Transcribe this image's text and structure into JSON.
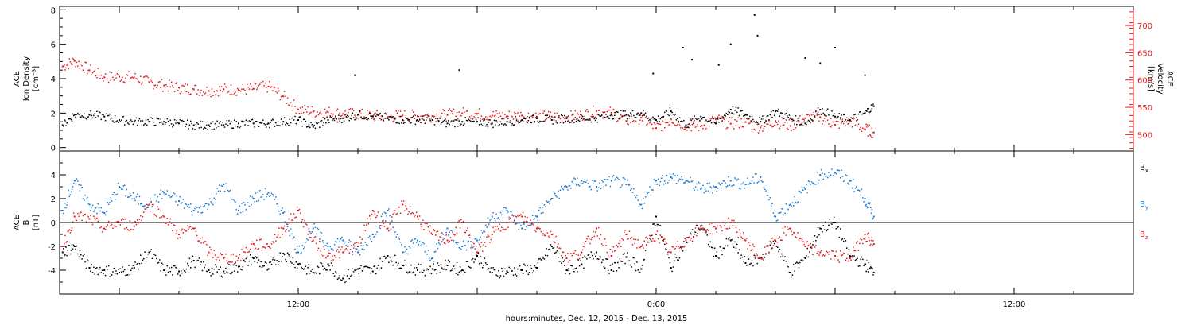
{
  "chart_data": [
    {
      "type": "scatter",
      "panel": "top",
      "xlabel": "hours:minutes, Dec. 12, 2015 - Dec. 13, 2015",
      "x_tick_labels": [
        "12:00",
        "0:00",
        "12:00"
      ],
      "x_unit": "hours since Dec. 12, 2015 00:00",
      "xlim": [
        4.0,
        40.0
      ],
      "left_axis": {
        "label_line1": "ACE",
        "label_line2": "Ion Density",
        "label_line3": "[cm⁻³]",
        "ylim": [
          -0.2,
          8.2
        ],
        "ticks": [
          0,
          2,
          4,
          6,
          8
        ],
        "color": "#000000"
      },
      "right_axis": {
        "label_line1": "ACE",
        "label_line2": "Velocity",
        "label_line3": "[km/s]",
        "ylim": [
          470,
          735
        ],
        "ticks": [
          500,
          550,
          600,
          650,
          700
        ],
        "color": "#e41a1c"
      },
      "series": [
        {
          "key": "density",
          "axis": "left",
          "color": "#000000",
          "x": [
            4.1,
            4.5,
            5.0,
            5.5,
            6.0,
            6.5,
            7.0,
            7.5,
            8.0,
            8.5,
            9.0,
            9.5,
            10.0,
            10.5,
            11.0,
            11.5,
            12.0,
            12.5,
            13.0,
            13.5,
            14.0,
            14.5,
            15.0,
            15.5,
            16.0,
            16.5,
            17.0,
            17.5,
            18.0,
            18.5,
            19.0,
            19.5,
            20.0,
            20.5,
            21.0,
            21.5,
            22.0,
            22.5,
            23.0,
            23.5,
            24.0,
            24.5,
            25.0,
            25.5,
            26.0,
            26.5,
            27.0,
            27.5,
            28.0,
            28.5,
            29.0,
            29.5,
            30.0,
            30.5,
            31.0,
            31.3
          ],
          "y": [
            1.3,
            1.9,
            1.9,
            1.8,
            1.6,
            1.5,
            1.5,
            1.5,
            1.4,
            1.3,
            1.3,
            1.3,
            1.4,
            1.4,
            1.4,
            1.5,
            1.6,
            1.2,
            1.6,
            1.7,
            1.9,
            1.8,
            1.7,
            1.6,
            1.6,
            1.6,
            1.4,
            1.5,
            1.5,
            1.4,
            1.5,
            1.6,
            1.7,
            1.6,
            1.7,
            1.7,
            1.7,
            1.9,
            1.9,
            2.0,
            1.6,
            2.1,
            1.3,
            1.8,
            1.4,
            2.2,
            1.9,
            1.5,
            2.1,
            1.7,
            1.4,
            2.2,
            1.8,
            1.6,
            2.0,
            2.4
          ]
        },
        {
          "key": "velocity",
          "axis": "right",
          "color": "#e41a1c",
          "x": [
            4.1,
            4.5,
            5.0,
            5.5,
            6.0,
            6.5,
            7.0,
            7.5,
            8.0,
            8.5,
            9.0,
            9.5,
            10.0,
            10.5,
            11.0,
            11.5,
            12.0,
            12.5,
            13.0,
            13.5,
            14.0,
            14.5,
            15.0,
            15.5,
            16.0,
            16.5,
            17.0,
            17.5,
            18.0,
            18.5,
            19.0,
            19.5,
            20.0,
            20.5,
            21.0,
            21.5,
            22.0,
            22.5,
            23.0,
            23.5,
            24.0,
            24.5,
            25.0,
            25.5,
            26.0,
            26.5,
            27.0,
            27.5,
            28.0,
            28.5,
            29.0,
            29.5,
            30.0,
            30.5,
            31.0,
            31.3
          ],
          "y": [
            625,
            635,
            618,
            605,
            606,
            605,
            596,
            590,
            586,
            583,
            580,
            583,
            582,
            584,
            588,
            570,
            546,
            542,
            541,
            538,
            537,
            534,
            532,
            535,
            534,
            534,
            536,
            539,
            538,
            535,
            534,
            535,
            533,
            533,
            532,
            535,
            543,
            540,
            525,
            531,
            512,
            528,
            517,
            515,
            528,
            520,
            523,
            513,
            525,
            516,
            530,
            532,
            518,
            525,
            510,
            504
          ]
        },
        {
          "key": "density_spikes",
          "axis": "left",
          "color": "#000000",
          "x": [
            13.9,
            17.4,
            27.3,
            27.4,
            24.9,
            23.9,
            25.2,
            26.1,
            26.5,
            29.0,
            29.5,
            30.0,
            31.0
          ],
          "y": [
            4.2,
            4.5,
            7.7,
            6.5,
            5.8,
            4.3,
            5.1,
            4.8,
            6.0,
            5.2,
            4.9,
            5.8,
            4.2
          ]
        }
      ]
    },
    {
      "type": "scatter",
      "panel": "bottom",
      "xlim": [
        4.0,
        40.0
      ],
      "left_axis": {
        "label_line1": "ACE",
        "label_line2": "B",
        "label_line3": "[nT]",
        "ylim": [
          -6.0,
          6.0
        ],
        "ticks": [
          -4,
          -2,
          0,
          2,
          4
        ]
      },
      "zero_line": 0,
      "legend_placement": "right",
      "series": [
        {
          "name": "Bx",
          "name_base": "B",
          "name_sub": "x",
          "color": "#000000",
          "x": [
            4.1,
            4.5,
            5.0,
            5.5,
            6.0,
            6.5,
            7.0,
            7.5,
            8.0,
            8.5,
            9.0,
            9.5,
            10.0,
            10.5,
            11.0,
            11.5,
            12.0,
            12.5,
            13.0,
            13.5,
            14.0,
            14.5,
            15.0,
            15.5,
            16.0,
            16.5,
            17.0,
            17.5,
            18.0,
            18.5,
            19.0,
            19.5,
            20.0,
            20.5,
            21.0,
            21.5,
            22.0,
            22.5,
            23.0,
            23.5,
            24.0,
            24.5,
            25.0,
            25.5,
            26.0,
            26.5,
            27.0,
            27.5,
            28.0,
            28.5,
            29.0,
            29.5,
            30.0,
            30.5,
            31.0,
            31.3
          ],
          "y": [
            -2.5,
            -2.0,
            -3.8,
            -4.0,
            -4.2,
            -3.8,
            -2.5,
            -4.0,
            -4.1,
            -3.2,
            -4.0,
            -4.1,
            -3.7,
            -3.0,
            -3.9,
            -2.6,
            -3.5,
            -4.2,
            -3.5,
            -4.7,
            -3.9,
            -4.1,
            -2.8,
            -3.6,
            -4.0,
            -3.9,
            -3.6,
            -4.0,
            -2.8,
            -4.2,
            -4.1,
            -4.0,
            -3.8,
            -2.0,
            -4.0,
            -3.5,
            -2.5,
            -4.0,
            -2.9,
            -3.9,
            0.5,
            -3.8,
            -1.5,
            -0.3,
            -2.8,
            -1.5,
            -3.4,
            -3.0,
            -1.6,
            -4.2,
            -3.0,
            -0.5,
            0.0,
            -2.8,
            -3.5,
            -4.2
          ]
        },
        {
          "name": "By",
          "name_base": "B",
          "name_sub": "y",
          "color": "#1a78d4",
          "x": [
            4.1,
            4.5,
            5.0,
            5.5,
            6.0,
            6.5,
            7.0,
            7.5,
            8.0,
            8.5,
            9.0,
            9.5,
            10.0,
            10.5,
            11.0,
            11.5,
            12.0,
            12.5,
            13.0,
            13.5,
            14.0,
            14.5,
            15.0,
            15.5,
            16.0,
            16.5,
            17.0,
            17.5,
            18.0,
            18.5,
            19.0,
            19.5,
            20.0,
            20.5,
            21.0,
            21.5,
            22.0,
            22.5,
            23.0,
            23.5,
            24.0,
            24.5,
            25.0,
            25.5,
            26.0,
            26.5,
            27.0,
            27.5,
            28.0,
            28.5,
            29.0,
            29.5,
            30.0,
            30.5,
            31.0,
            31.3
          ],
          "y": [
            1.0,
            3.5,
            1.5,
            0.8,
            3.0,
            2.0,
            1.5,
            2.5,
            1.8,
            1.0,
            1.5,
            3.2,
            1.0,
            2.0,
            2.5,
            0.8,
            -2.5,
            -0.5,
            -2.0,
            -1.5,
            -2.5,
            -1.0,
            1.0,
            -2.5,
            -1.5,
            -3.0,
            -0.5,
            -2.0,
            -1.5,
            0.5,
            1.0,
            -0.5,
            0.5,
            2.0,
            3.0,
            3.5,
            3.0,
            3.5,
            3.2,
            1.5,
            3.5,
            3.8,
            3.5,
            2.8,
            3.0,
            3.5,
            3.2,
            3.8,
            0.5,
            1.5,
            2.8,
            4.0,
            4.2,
            3.5,
            2.0,
            0.5
          ]
        },
        {
          "name": "Bz",
          "name_base": "B",
          "name_sub": "z",
          "color": "#e41a1c",
          "x": [
            4.1,
            4.5,
            5.0,
            5.5,
            6.0,
            6.5,
            7.0,
            7.5,
            8.0,
            8.5,
            9.0,
            9.5,
            10.0,
            10.5,
            11.0,
            11.5,
            12.0,
            12.5,
            13.0,
            13.5,
            14.0,
            14.5,
            15.0,
            15.5,
            16.0,
            16.5,
            17.0,
            17.5,
            18.0,
            18.5,
            19.0,
            19.5,
            20.0,
            20.5,
            21.0,
            21.5,
            22.0,
            22.5,
            23.0,
            23.5,
            24.0,
            24.5,
            25.0,
            25.5,
            26.0,
            26.5,
            27.0,
            27.5,
            28.0,
            28.5,
            29.0,
            29.5,
            30.0,
            30.5,
            31.0,
            31.3
          ],
          "y": [
            -2.0,
            0.5,
            0.3,
            -0.5,
            0.0,
            -0.3,
            1.5,
            0.5,
            -1.0,
            -0.5,
            -2.5,
            -3.0,
            -3.0,
            -1.8,
            -2.0,
            -0.5,
            1.0,
            -1.5,
            -2.8,
            -2.5,
            -2.0,
            1.0,
            -0.5,
            1.5,
            0.5,
            -1.0,
            -1.5,
            0.0,
            -2.5,
            -1.0,
            0.0,
            0.5,
            -0.5,
            -1.0,
            -3.0,
            -2.5,
            -0.5,
            -2.8,
            -1.0,
            -2.0,
            -1.0,
            -2.5,
            -1.5,
            -0.5,
            -0.5,
            0.0,
            -1.5,
            -3.0,
            -1.5,
            -0.5,
            -2.0,
            -2.5,
            -2.8,
            -3.0,
            -1.0,
            -1.8
          ]
        }
      ]
    }
  ]
}
